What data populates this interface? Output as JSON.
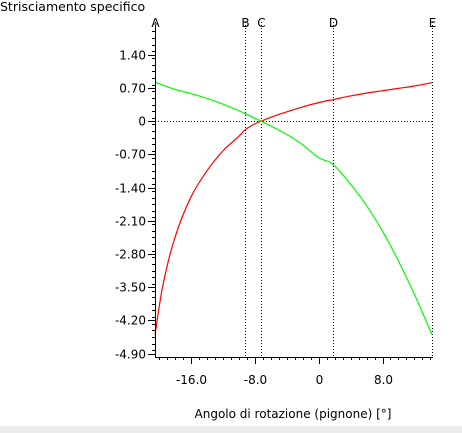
{
  "chart_data": {
    "type": "line",
    "title": "Strisciamento specifico",
    "xlabel": "Angolo di rotazione (pignone) [°]",
    "ylabel": "",
    "xlim": [
      -20.5,
      14.2
    ],
    "ylim": [
      -4.97,
      1.92
    ],
    "x_ticks": [
      -16.0,
      -8.0,
      0,
      8.0
    ],
    "x_tick_labels": [
      "-16.0",
      "-8.0",
      "0",
      "8.0"
    ],
    "y_ticks": [
      1.4,
      0.7,
      0,
      -0.7,
      -1.4,
      -2.1,
      -2.8,
      -3.5,
      -4.2,
      -4.9
    ],
    "y_tick_labels": [
      "1.40",
      "0.70",
      "0",
      "-0.70",
      "-1.40",
      "-2.10",
      "-2.80",
      "-3.50",
      "-4.20",
      "-4.90"
    ],
    "grid": false,
    "reference_lines": [
      {
        "label": "A",
        "x": -20.5
      },
      {
        "label": "B",
        "x": -9.2
      },
      {
        "label": "C",
        "x": -7.2
      },
      {
        "label": "D",
        "x": 1.8
      },
      {
        "label": "E",
        "x": 14.2
      }
    ],
    "zero_line_y": 0,
    "series": [
      {
        "color": "#ff0000",
        "x": [
          -20.5,
          -19.5,
          -18.0,
          -16.0,
          -14.0,
          -12.0,
          -10.0,
          -9.2,
          -8.0,
          -7.2,
          -5.0,
          -2.0,
          0,
          2.0,
          4.0,
          6.0,
          8.0,
          10.0,
          12.0,
          14.2
        ],
        "y": [
          -4.5,
          -3.45,
          -2.45,
          -1.6,
          -1.05,
          -0.63,
          -0.32,
          -0.18,
          -0.06,
          0,
          0.14,
          0.3,
          0.39,
          0.46,
          0.53,
          0.59,
          0.64,
          0.69,
          0.74,
          0.81
        ]
      },
      {
        "color": "#00ff00",
        "x": [
          -20.5,
          -18.0,
          -16.0,
          -14.0,
          -12.0,
          -10.0,
          -9.2,
          -8.0,
          -7.2,
          -4.0,
          -2.0,
          0,
          1.8,
          4.0,
          6.0,
          8.0,
          10.0,
          12.0,
          14.2
        ],
        "y": [
          0.82,
          0.67,
          0.58,
          0.48,
          0.36,
          0.22,
          0.16,
          0.06,
          0,
          -0.28,
          -0.5,
          -0.77,
          -0.91,
          -1.33,
          -1.78,
          -2.32,
          -2.95,
          -3.65,
          -4.5
        ]
      }
    ]
  }
}
